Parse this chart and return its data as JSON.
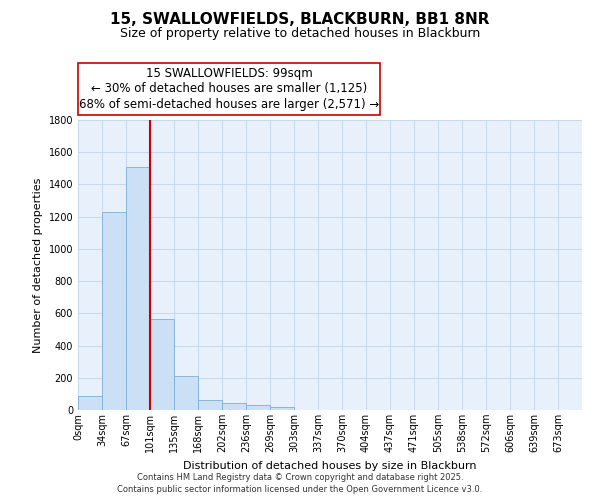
{
  "title": "15, SWALLOWFIELDS, BLACKBURN, BB1 8NR",
  "subtitle": "Size of property relative to detached houses in Blackburn",
  "xlabel": "Distribution of detached houses by size in Blackburn",
  "ylabel": "Number of detached properties",
  "bar_labels": [
    "0sqm",
    "34sqm",
    "67sqm",
    "101sqm",
    "135sqm",
    "168sqm",
    "202sqm",
    "236sqm",
    "269sqm",
    "303sqm",
    "337sqm",
    "370sqm",
    "404sqm",
    "437sqm",
    "471sqm",
    "505sqm",
    "538sqm",
    "572sqm",
    "606sqm",
    "639sqm",
    "673sqm"
  ],
  "bar_values": [
    90,
    1230,
    1510,
    565,
    210,
    65,
    45,
    30,
    20,
    0,
    0,
    0,
    0,
    0,
    0,
    0,
    0,
    0,
    0,
    0,
    0
  ],
  "bar_color": "#cce0f5",
  "bar_edge_color": "#7bafd4",
  "vline_x": 3,
  "vline_color": "#cc0000",
  "ann_line1": "15 SWALLOWFIELDS: 99sqm",
  "ann_line2": "← 30% of detached houses are smaller (1,125)",
  "ann_line3": "68% of semi-detached houses are larger (2,571) →",
  "ylim": [
    0,
    1800
  ],
  "yticks": [
    0,
    200,
    400,
    600,
    800,
    1000,
    1200,
    1400,
    1600,
    1800
  ],
  "background_color": "#ffffff",
  "plot_bg_color": "#e8f0fb",
  "grid_color": "#c8d8ec",
  "footer_line1": "Contains HM Land Registry data © Crown copyright and database right 2025.",
  "footer_line2": "Contains public sector information licensed under the Open Government Licence v3.0.",
  "title_fontsize": 11,
  "subtitle_fontsize": 9,
  "ylabel_fontsize": 8,
  "xlabel_fontsize": 8,
  "tick_fontsize": 7,
  "annotation_fontsize": 8.5,
  "footer_fontsize": 6
}
